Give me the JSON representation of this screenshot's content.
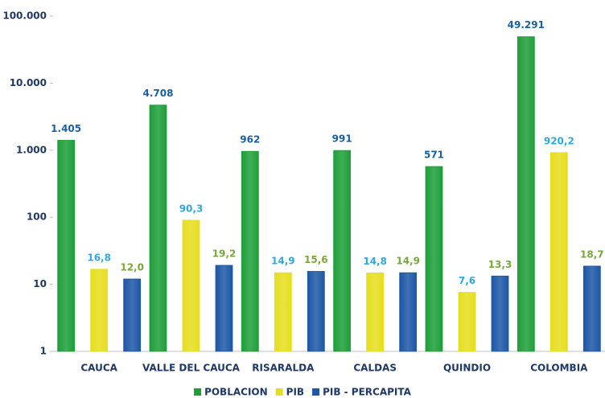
{
  "chart_data": {
    "type": "bar",
    "log_scale": true,
    "categories": [
      "CAUCA",
      "VALLE DEL CAUCA",
      "RISARALDA",
      "CALDAS",
      "QUINDIO",
      "COLOMBIA"
    ],
    "series": [
      {
        "name": "POBLACION",
        "color": "#1e9e3a",
        "label_color": "#1a5fa0",
        "values": [
          1405,
          4708,
          962,
          991,
          571,
          49291
        ],
        "value_labels": [
          "1.405",
          "4.708",
          "962",
          "991",
          "571",
          "49.291"
        ]
      },
      {
        "name": "PIB",
        "color": "#e6de1e",
        "label_color": "#2fa8dc",
        "values": [
          16.8,
          90.3,
          14.9,
          14.8,
          7.6,
          920.2
        ],
        "value_labels": [
          "16,8",
          "90,3",
          "14,9",
          "14,8",
          "7,6",
          "920,2"
        ]
      },
      {
        "name": "PIB - PERCAPITA",
        "color": "#1d57a6",
        "label_color": "#79a83a",
        "values": [
          12.0,
          19.2,
          15.6,
          14.9,
          13.3,
          18.7
        ],
        "value_labels": [
          "12,0",
          "19,2",
          "15,6",
          "14,9",
          "13,3",
          "18,7"
        ]
      }
    ],
    "ylim": [
      1,
      100000
    ],
    "yticks": [
      1,
      10,
      100,
      {
        "value": 1000,
        "label": "1.000"
      },
      {
        "value": 10000,
        "label": "10.000"
      },
      {
        "value": 100000,
        "label": "100.000"
      }
    ],
    "legend": "bottom"
  }
}
